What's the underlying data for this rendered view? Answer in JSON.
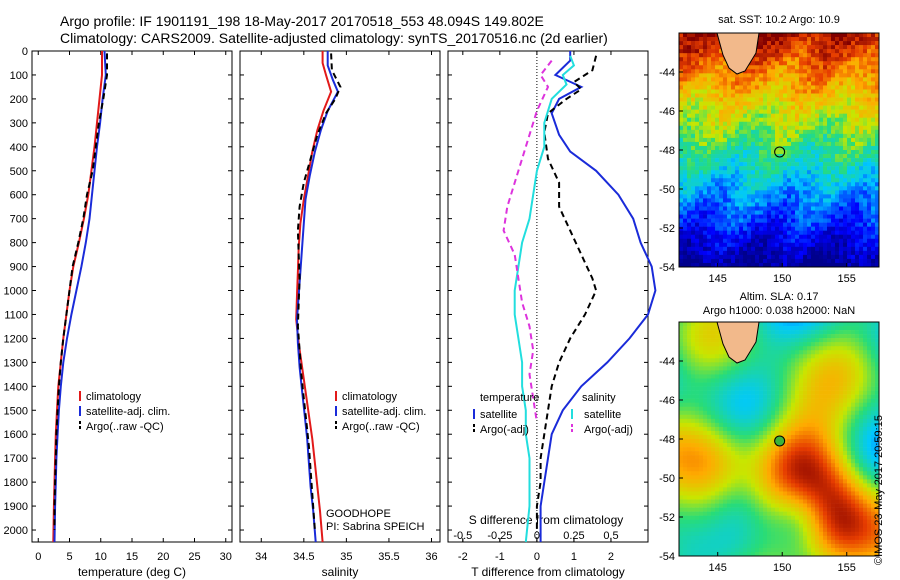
{
  "title": {
    "line1": "Argo profile: IF 1901191_198 18-May-2017 20170518_553 48.094S 149.802E",
    "line2": "Climatology: CARS2009. Satellite-adjusted climatology: synTS_20170516.nc (2d earlier)"
  },
  "colors": {
    "climatology": "#e21a1a",
    "satellite": "#1a2bd9",
    "argo": "#000000",
    "satellite_s": "#22dede",
    "argo_s": "#dd33dd"
  },
  "chart_data": [
    {
      "type": "line",
      "panel": "temperature",
      "xlabel": "temperature (deg C)",
      "ylabel": "",
      "xlim": [
        -1,
        31
      ],
      "ylim": [
        2050,
        0
      ],
      "xticks": [
        "0",
        "5",
        "10",
        "15",
        "20",
        "25",
        "30"
      ],
      "yticks": [
        "0",
        "100",
        "200",
        "300",
        "400",
        "500",
        "600",
        "700",
        "800",
        "900",
        "1000",
        "1100",
        "1200",
        "1300",
        "1400",
        "1500",
        "1600",
        "1700",
        "1800",
        "1900",
        "2000"
      ],
      "legend": [
        "climatology",
        "satellite-adj. clim.",
        "Argo(..raw -QC)"
      ],
      "series": [
        {
          "name": "climatology",
          "style": "solid",
          "color": "#e21a1a",
          "points": [
            [
              10.2,
              0
            ],
            [
              10.2,
              100
            ],
            [
              9.8,
              200
            ],
            [
              9.4,
              300
            ],
            [
              9.0,
              400
            ],
            [
              8.5,
              500
            ],
            [
              8.0,
              600
            ],
            [
              7.3,
              700
            ],
            [
              6.5,
              800
            ],
            [
              5.6,
              900
            ],
            [
              5.0,
              1000
            ],
            [
              4.5,
              1100
            ],
            [
              4.0,
              1200
            ],
            [
              3.6,
              1300
            ],
            [
              3.2,
              1400
            ],
            [
              3.0,
              1500
            ],
            [
              2.8,
              1600
            ],
            [
              2.7,
              1700
            ],
            [
              2.6,
              1800
            ],
            [
              2.5,
              1900
            ],
            [
              2.4,
              2050
            ]
          ]
        },
        {
          "name": "satellite-adj. clim.",
          "style": "solid",
          "color": "#1a2bd9",
          "points": [
            [
              10.6,
              0
            ],
            [
              10.8,
              100
            ],
            [
              10.3,
              200
            ],
            [
              9.9,
              300
            ],
            [
              9.4,
              400
            ],
            [
              9.0,
              500
            ],
            [
              8.6,
              600
            ],
            [
              8.2,
              700
            ],
            [
              7.6,
              800
            ],
            [
              6.9,
              900
            ],
            [
              6.1,
              1000
            ],
            [
              5.3,
              1100
            ],
            [
              4.6,
              1200
            ],
            [
              4.0,
              1300
            ],
            [
              3.6,
              1400
            ],
            [
              3.3,
              1500
            ],
            [
              3.1,
              1600
            ],
            [
              2.9,
              1700
            ],
            [
              2.8,
              1800
            ],
            [
              2.7,
              1900
            ],
            [
              2.6,
              2050
            ]
          ]
        },
        {
          "name": "Argo(..raw -QC)",
          "style": "dash",
          "color": "#000000",
          "points": [
            [
              11.0,
              10
            ],
            [
              11.0,
              100
            ],
            [
              10.4,
              200
            ],
            [
              9.7,
              300
            ],
            [
              9.2,
              400
            ],
            [
              8.7,
              500
            ],
            [
              7.8,
              600
            ],
            [
              7.2,
              700
            ],
            [
              6.4,
              800
            ],
            [
              5.5,
              900
            ],
            [
              5.0,
              1000
            ],
            [
              4.5,
              1100
            ],
            [
              4.0,
              1200
            ],
            [
              3.6,
              1300
            ],
            [
              3.3,
              1400
            ],
            [
              3.1,
              1500
            ],
            [
              2.9,
              1600
            ],
            [
              2.8,
              1700
            ],
            [
              2.7,
              1800
            ],
            [
              2.6,
              1900
            ],
            [
              2.6,
              2000
            ]
          ]
        }
      ]
    },
    {
      "type": "line",
      "panel": "salinity",
      "xlabel": "salinity",
      "xlim": [
        33.75,
        36.1
      ],
      "ylim": [
        2050,
        0
      ],
      "xticks": [
        "34",
        "34.5",
        "35",
        "35.5",
        "36"
      ],
      "legend": [
        "climatology",
        "satellite-adj. clim.",
        "Argo(..raw -QC)"
      ],
      "annotation": [
        "GOODHOPE",
        "PI: Sabrina SPEICH"
      ],
      "series": [
        {
          "name": "climatology",
          "style": "solid",
          "color": "#e21a1a",
          "points": [
            [
              34.72,
              0
            ],
            [
              34.72,
              50
            ],
            [
              34.76,
              100
            ],
            [
              34.82,
              170
            ],
            [
              34.73,
              250
            ],
            [
              34.66,
              330
            ],
            [
              34.6,
              420
            ],
            [
              34.55,
              520
            ],
            [
              34.5,
              620
            ],
            [
              34.46,
              720
            ],
            [
              34.44,
              820
            ],
            [
              34.43,
              920
            ],
            [
              34.42,
              1020
            ],
            [
              34.41,
              1120
            ],
            [
              34.44,
              1220
            ],
            [
              34.48,
              1320
            ],
            [
              34.52,
              1420
            ],
            [
              34.56,
              1520
            ],
            [
              34.6,
              1620
            ],
            [
              34.63,
              1720
            ],
            [
              34.66,
              1820
            ],
            [
              34.69,
              1920
            ],
            [
              34.72,
              2050
            ]
          ]
        },
        {
          "name": "satellite-adj. clim.",
          "style": "solid",
          "color": "#1a2bd9",
          "points": [
            [
              34.78,
              0
            ],
            [
              34.78,
              60
            ],
            [
              34.84,
              120
            ],
            [
              34.9,
              170
            ],
            [
              34.78,
              250
            ],
            [
              34.7,
              330
            ],
            [
              34.63,
              420
            ],
            [
              34.57,
              520
            ],
            [
              34.52,
              620
            ],
            [
              34.5,
              720
            ],
            [
              34.48,
              820
            ],
            [
              34.46,
              920
            ],
            [
              34.44,
              1020
            ],
            [
              34.42,
              1120
            ],
            [
              34.43,
              1220
            ],
            [
              34.45,
              1320
            ],
            [
              34.48,
              1420
            ],
            [
              34.51,
              1520
            ],
            [
              34.54,
              1620
            ],
            [
              34.56,
              1720
            ],
            [
              34.58,
              1820
            ],
            [
              34.61,
              1920
            ],
            [
              34.64,
              2050
            ]
          ]
        },
        {
          "name": "Argo(..raw -QC)",
          "style": "dash",
          "color": "#000000",
          "points": [
            [
              34.82,
              10
            ],
            [
              34.83,
              80
            ],
            [
              34.93,
              150
            ],
            [
              34.87,
              200
            ],
            [
              34.76,
              260
            ],
            [
              34.66,
              350
            ],
            [
              34.58,
              450
            ],
            [
              34.5,
              550
            ],
            [
              34.45,
              650
            ],
            [
              34.43,
              750
            ],
            [
              34.44,
              850
            ],
            [
              34.45,
              950
            ],
            [
              34.44,
              1050
            ],
            [
              34.43,
              1150
            ],
            [
              34.45,
              1250
            ],
            [
              34.47,
              1350
            ],
            [
              34.5,
              1450
            ],
            [
              34.53,
              1550
            ],
            [
              34.56,
              1650
            ],
            [
              34.58,
              1750
            ],
            [
              34.6,
              1850
            ],
            [
              34.62,
              1950
            ],
            [
              34.63,
              2000
            ]
          ]
        }
      ]
    },
    {
      "type": "line",
      "panel": "difference",
      "xlabel": "T difference from climatology",
      "xlabel2": "S difference from climatology",
      "xlim": [
        -2.4,
        3
      ],
      "ylim": [
        2050,
        0
      ],
      "xticks": [
        "-2",
        "-1",
        "0",
        "1",
        "2"
      ],
      "xticks2": [
        "-0.5",
        "-0.25",
        "0",
        "0.25",
        "0.5"
      ],
      "legend_groups": [
        {
          "title": "temperature",
          "items": [
            "satellite",
            "Argo(-adj)"
          ]
        },
        {
          "title": "salinity",
          "items": [
            "satellite",
            "Argo(-adj)"
          ]
        }
      ],
      "series": [
        {
          "name": "temperature satellite",
          "style": "solid",
          "color": "#1a2bd9",
          "points": [
            [
              0.9,
              0
            ],
            [
              0.9,
              40
            ],
            [
              0.5,
              100
            ],
            [
              1.2,
              150
            ],
            [
              0.6,
              200
            ],
            [
              0.4,
              260
            ],
            [
              0.6,
              350
            ],
            [
              0.9,
              420
            ],
            [
              1.6,
              500
            ],
            [
              2.2,
              600
            ],
            [
              2.6,
              700
            ],
            [
              2.8,
              800
            ],
            [
              3.1,
              900
            ],
            [
              3.2,
              1000
            ],
            [
              3.0,
              1100
            ],
            [
              2.5,
              1200
            ],
            [
              1.9,
              1300
            ],
            [
              1.2,
              1400
            ],
            [
              0.7,
              1500
            ],
            [
              0.4,
              1600
            ],
            [
              0.3,
              1700
            ],
            [
              0.2,
              1800
            ],
            [
              0.1,
              1900
            ],
            [
              0.1,
              2050
            ]
          ]
        },
        {
          "name": "temperature Argo(-adj)",
          "style": "dash",
          "color": "#000000",
          "points": [
            [
              1.6,
              20
            ],
            [
              1.5,
              80
            ],
            [
              1.0,
              130
            ],
            [
              1.2,
              160
            ],
            [
              0.8,
              200
            ],
            [
              0.3,
              260
            ],
            [
              0.2,
              340
            ],
            [
              0.3,
              450
            ],
            [
              0.6,
              550
            ],
            [
              0.6,
              650
            ],
            [
              0.9,
              750
            ],
            [
              1.2,
              850
            ],
            [
              1.5,
              950
            ],
            [
              1.6,
              1000
            ],
            [
              1.3,
              1100
            ],
            [
              0.9,
              1200
            ],
            [
              0.6,
              1300
            ],
            [
              0.4,
              1400
            ],
            [
              0.3,
              1500
            ],
            [
              0.2,
              1600
            ],
            [
              0.1,
              1700
            ],
            [
              0.1,
              1800
            ],
            [
              0.0,
              1900
            ],
            [
              0.0,
              2000
            ]
          ]
        },
        {
          "name": "salinity satellite",
          "style": "solid",
          "color": "#22dede",
          "points": [
            [
              0.9,
              20
            ],
            [
              1.0,
              60
            ],
            [
              0.7,
              100
            ],
            [
              0.8,
              140
            ],
            [
              0.4,
              200
            ],
            [
              0.2,
              300
            ],
            [
              0.2,
              400
            ],
            [
              0.0,
              500
            ],
            [
              -0.1,
              600
            ],
            [
              -0.2,
              700
            ],
            [
              -0.4,
              800
            ],
            [
              -0.5,
              900
            ],
            [
              -0.6,
              1000
            ],
            [
              -0.6,
              1100
            ],
            [
              -0.5,
              1200
            ],
            [
              -0.4,
              1300
            ],
            [
              -0.4,
              1400
            ],
            [
              -0.3,
              1500
            ],
            [
              -0.3,
              1600
            ],
            [
              -0.2,
              1700
            ],
            [
              -0.2,
              1800
            ],
            [
              -0.2,
              1900
            ],
            [
              -0.3,
              2050
            ]
          ]
        },
        {
          "name": "salinity Argo(-adj)",
          "style": "dash",
          "color": "#dd33dd",
          "points": [
            [
              0.4,
              40
            ],
            [
              0.1,
              100
            ],
            [
              0.3,
              150
            ],
            [
              0.0,
              250
            ],
            [
              -0.2,
              350
            ],
            [
              -0.4,
              450
            ],
            [
              -0.6,
              550
            ],
            [
              -0.8,
              650
            ],
            [
              -0.9,
              750
            ],
            [
              -0.6,
              850
            ],
            [
              -0.5,
              950
            ],
            [
              -0.4,
              1050
            ],
            [
              -0.2,
              1150
            ],
            [
              -0.1,
              1250
            ],
            [
              -0.2,
              1350
            ],
            [
              -0.1,
              1450
            ],
            [
              0.0,
              1550
            ]
          ]
        }
      ]
    },
    {
      "type": "heatmap",
      "panel": "sst-map",
      "title": "sat. SST: 10.2  Argo: 10.9",
      "xticks": [
        "145",
        "150",
        "155"
      ],
      "yticks": [
        "-44",
        "-46",
        "-48",
        "-50",
        "-52",
        "-54"
      ],
      "xlim": [
        142,
        157.5
      ],
      "ylim": [
        -54,
        -42
      ],
      "argo_position": {
        "lon": 149.8,
        "lat": -48.1
      }
    },
    {
      "type": "heatmap",
      "panel": "sla-map",
      "title": "Altim. SLA: 0.17",
      "subtitle": "Argo h1000: 0.038  h2000: NaN",
      "xticks": [
        "145",
        "150",
        "155"
      ],
      "yticks": [
        "-44",
        "-46",
        "-48",
        "-50",
        "-52",
        "-54"
      ],
      "xlim": [
        142,
        157.5
      ],
      "ylim": [
        -54,
        -42
      ],
      "argo_position": {
        "lon": 149.8,
        "lat": -48.1
      }
    }
  ],
  "credit": "©IMOS 23-May-2017 20:59:15"
}
